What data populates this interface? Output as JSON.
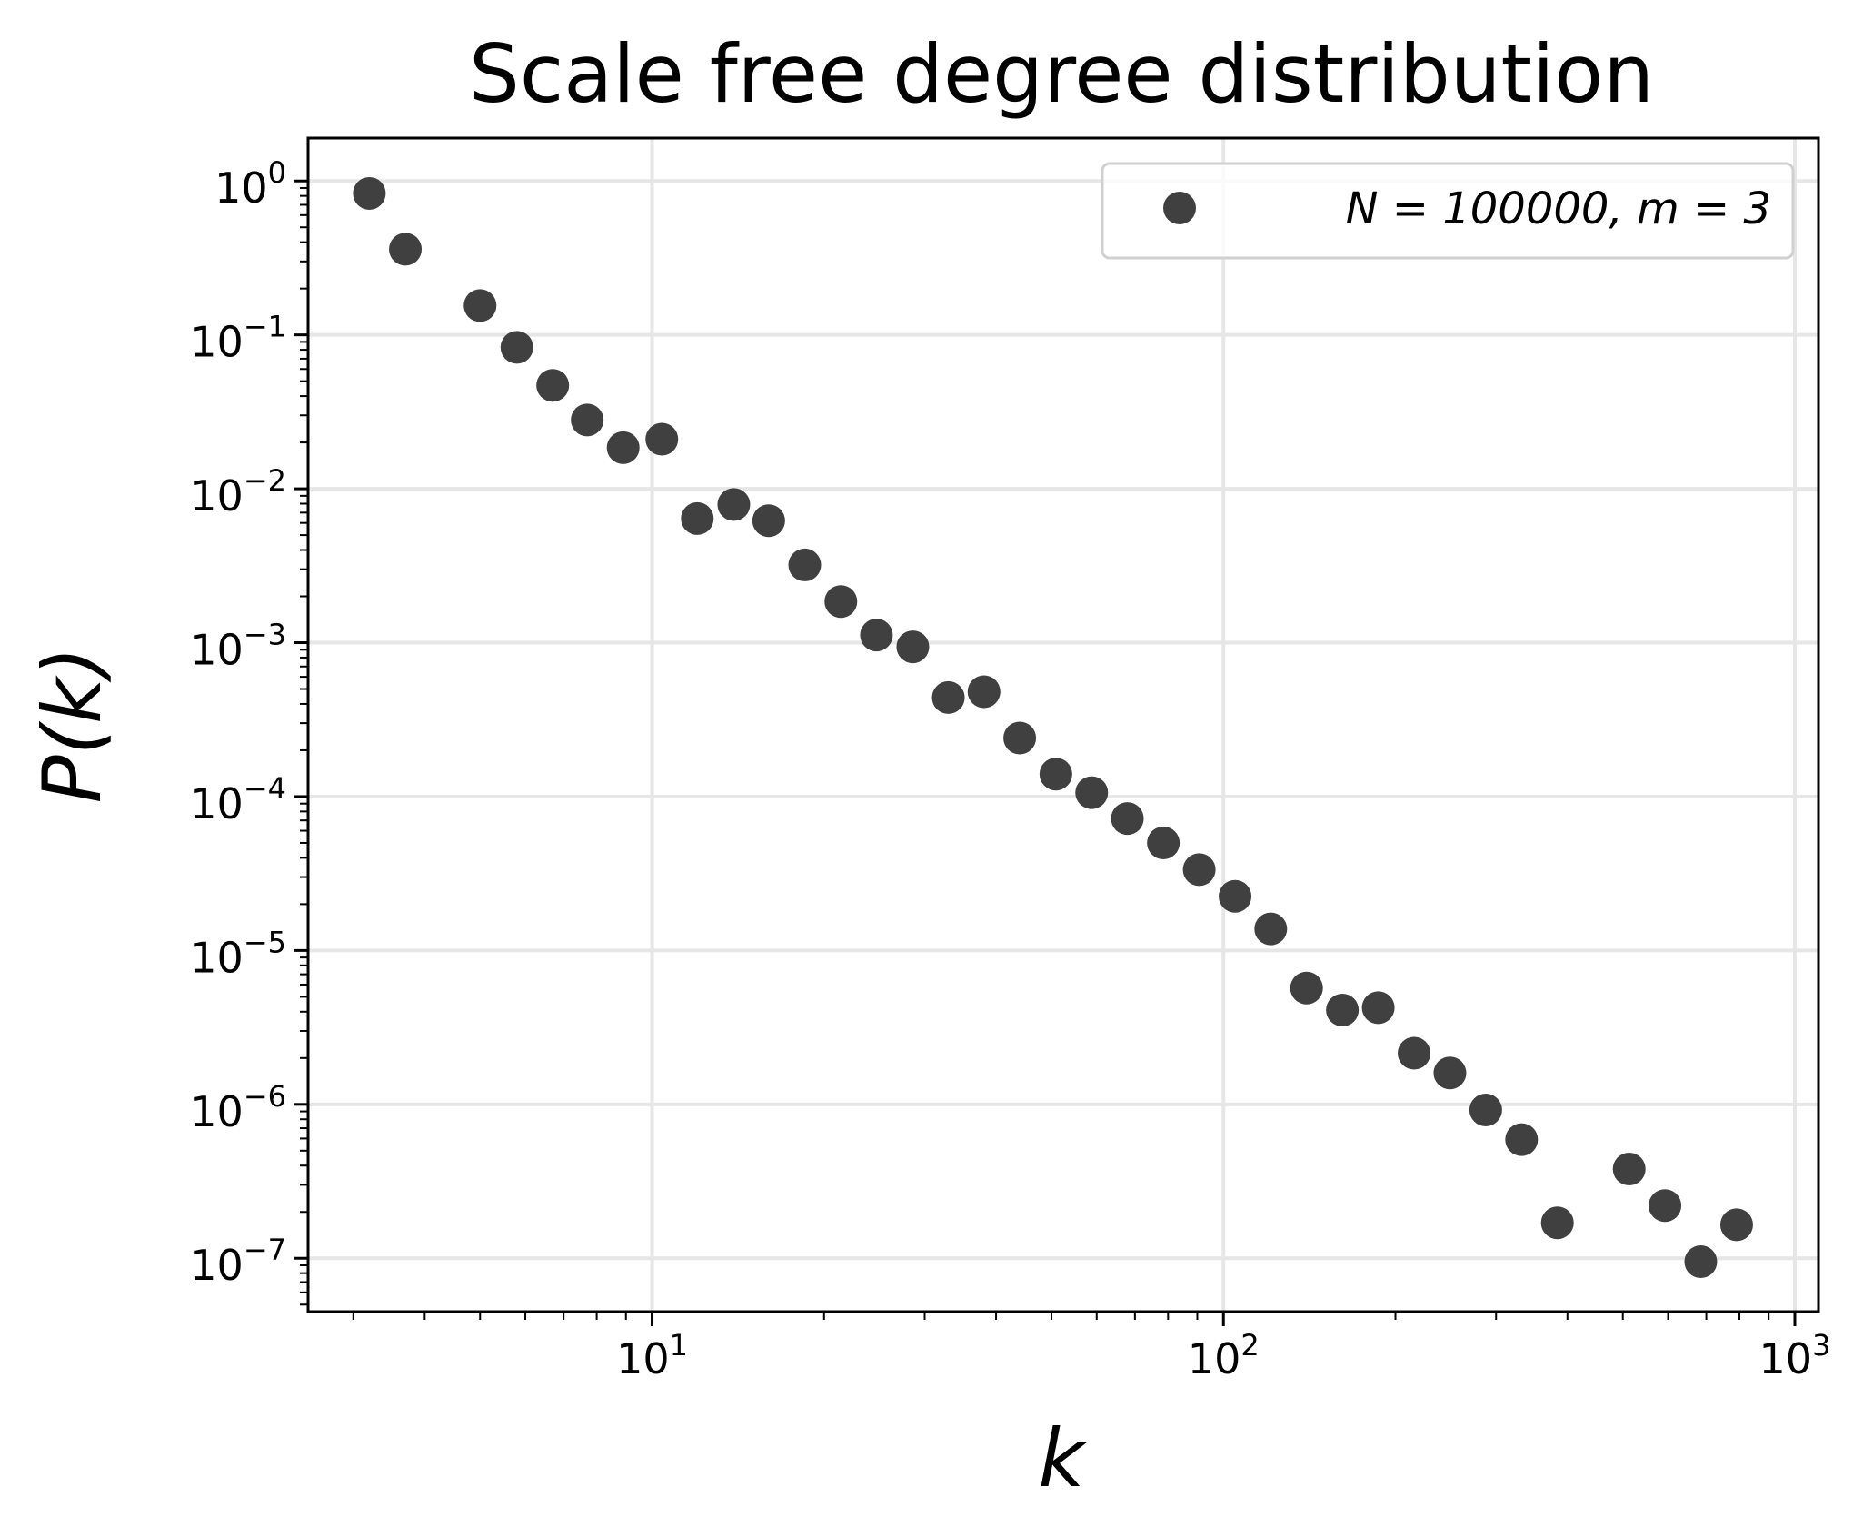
{
  "chart_data": {
    "type": "scatter",
    "title": "Scale free degree distribution",
    "xlabel": "k",
    "ylabel": "P(k)",
    "x_scale": "log",
    "y_scale": "log",
    "xlim": [
      2.5,
      1100
    ],
    "ylim": [
      4.5e-08,
      1.9
    ],
    "grid": true,
    "legend_position": "top-right",
    "marker_color": "#404040",
    "x_ticks": [
      {
        "value": 10,
        "base": "10",
        "exp": "1"
      },
      {
        "value": 100,
        "base": "10",
        "exp": "2"
      },
      {
        "value": 1000,
        "base": "10",
        "exp": "3"
      }
    ],
    "y_ticks": [
      {
        "value": 1,
        "base": "10",
        "exp": "0"
      },
      {
        "value": 0.1,
        "base": "10",
        "exp": "−1"
      },
      {
        "value": 0.01,
        "base": "10",
        "exp": "−2"
      },
      {
        "value": 0.001,
        "base": "10",
        "exp": "−3"
      },
      {
        "value": 0.0001,
        "base": "10",
        "exp": "−4"
      },
      {
        "value": 1e-05,
        "base": "10",
        "exp": "−5"
      },
      {
        "value": 1e-06,
        "base": "10",
        "exp": "−6"
      },
      {
        "value": 1e-07,
        "base": "10",
        "exp": "−7"
      }
    ],
    "series": [
      {
        "name": "N = 100000, m = 3",
        "points": [
          [
            3.2,
            0.83
          ],
          [
            3.7,
            0.36
          ],
          [
            5.0,
            0.155
          ],
          [
            5.8,
            0.083
          ],
          [
            6.7,
            0.047
          ],
          [
            7.7,
            0.028
          ],
          [
            8.9,
            0.0185
          ],
          [
            10.4,
            0.021
          ],
          [
            12.0,
            0.0064
          ],
          [
            13.9,
            0.0079
          ],
          [
            16.0,
            0.0062
          ],
          [
            18.5,
            0.0032
          ],
          [
            21.4,
            0.00185
          ],
          [
            24.7,
            0.00112
          ],
          [
            28.6,
            0.00094
          ],
          [
            33.0,
            0.00044
          ],
          [
            38.1,
            0.00048
          ],
          [
            44.0,
            0.00024
          ],
          [
            50.9,
            0.00014
          ],
          [
            58.8,
            0.000106
          ],
          [
            67.9,
            7.2e-05
          ],
          [
            78.5,
            5e-05
          ],
          [
            90.7,
            3.35e-05
          ],
          [
            104.8,
            2.25e-05
          ],
          [
            121.0,
            1.38e-05
          ],
          [
            139.8,
            5.7e-06
          ],
          [
            161.5,
            4.1e-06
          ],
          [
            186.6,
            4.25e-06
          ],
          [
            215.6,
            2.15e-06
          ],
          [
            249.1,
            1.6e-06
          ],
          [
            287.8,
            9.2e-07
          ],
          [
            332.5,
            5.9e-07
          ],
          [
            384.1,
            1.7e-07
          ],
          [
            513.0,
            3.8e-07
          ],
          [
            592.5,
            2.2e-07
          ],
          [
            684.5,
            9.5e-08
          ],
          [
            791.0,
            1.65e-07
          ]
        ]
      }
    ]
  }
}
